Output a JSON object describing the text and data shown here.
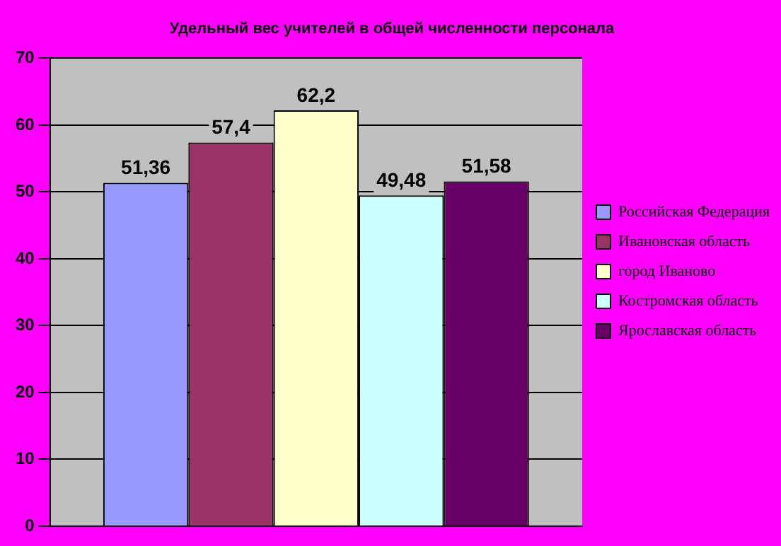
{
  "chart_data": {
    "type": "bar",
    "title": "Удельный вес учителей в общей численности персонала",
    "categories": [
      null
    ],
    "series": [
      {
        "name": "Российская Федерация",
        "color": "#9999ff",
        "values": [
          51.36
        ],
        "value_labels": [
          "51,36"
        ]
      },
      {
        "name": "Ивановская область",
        "color": "#993366",
        "values": [
          57.4
        ],
        "value_labels": [
          "57,4"
        ]
      },
      {
        "name": "город Иваново",
        "color": "#ffffcc",
        "values": [
          62.2
        ],
        "value_labels": [
          "62,2"
        ]
      },
      {
        "name": "Костромская область",
        "color": "#ccffff",
        "values": [
          49.48
        ],
        "value_labels": [
          "49,48"
        ]
      },
      {
        "name": "Ярославская область",
        "color": "#660066",
        "values": [
          51.58
        ],
        "value_labels": [
          "51,58"
        ]
      }
    ],
    "ylim": [
      0,
      70
    ],
    "yticks": [
      0,
      10,
      20,
      30,
      40,
      50,
      60,
      70
    ],
    "grid": "y",
    "legend": "right"
  }
}
